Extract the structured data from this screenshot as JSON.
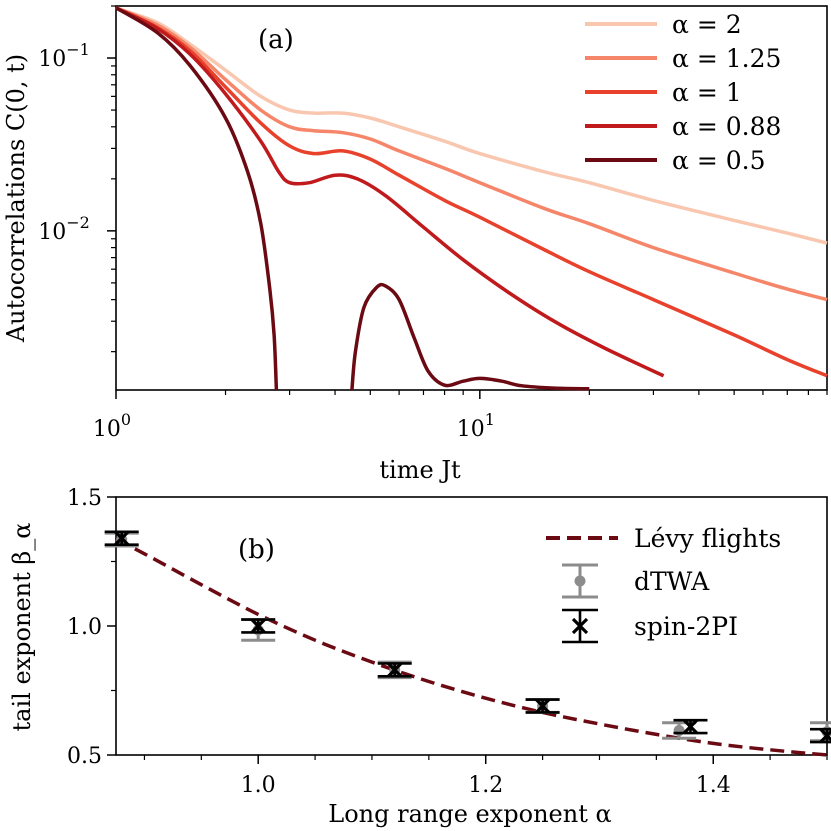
{
  "chart_data": [
    {
      "type": "line",
      "panel_label": "(a)",
      "xlabel": "time Jt",
      "ylabel": "Autocorrelations C(0, t)",
      "xscale": "log",
      "yscale": "log",
      "xlim": [
        1,
        90
      ],
      "ylim": [
        0.0012,
        0.2
      ],
      "x_ticks": [
        {
          "value": 1,
          "base": "10",
          "exp": "0"
        },
        {
          "value": 10,
          "base": "10",
          "exp": "1"
        }
      ],
      "y_ticks": [
        {
          "value": 0.1,
          "base": "10",
          "exp": "−1"
        },
        {
          "value": 0.01,
          "base": "10",
          "exp": "−2"
        }
      ],
      "legend_position": "top-right",
      "series": [
        {
          "name": "α = 2",
          "color": "#f9c7b0",
          "points": [
            [
              1,
              0.195
            ],
            [
              1.3,
              0.16
            ],
            [
              1.6,
              0.12
            ],
            [
              2.0,
              0.085
            ],
            [
              2.5,
              0.06
            ],
            [
              3.0,
              0.05
            ],
            [
              3.5,
              0.048
            ],
            [
              4.2,
              0.048
            ],
            [
              5.0,
              0.045
            ],
            [
              6.0,
              0.04
            ],
            [
              8.0,
              0.033
            ],
            [
              10,
              0.028
            ],
            [
              15,
              0.022
            ],
            [
              20,
              0.019
            ],
            [
              30,
              0.015
            ],
            [
              50,
              0.0115
            ],
            [
              70,
              0.0097
            ],
            [
              90,
              0.0085
            ]
          ]
        },
        {
          "name": "α = 1.25",
          "color": "#f5866a",
          "points": [
            [
              1,
              0.195
            ],
            [
              1.3,
              0.155
            ],
            [
              1.6,
              0.115
            ],
            [
              2.0,
              0.075
            ],
            [
              2.5,
              0.05
            ],
            [
              3.0,
              0.04
            ],
            [
              3.5,
              0.038
            ],
            [
              4.2,
              0.037
            ],
            [
              5.0,
              0.034
            ],
            [
              6.0,
              0.029
            ],
            [
              8.0,
              0.023
            ],
            [
              10,
              0.019
            ],
            [
              15,
              0.0135
            ],
            [
              20,
              0.011
            ],
            [
              30,
              0.008
            ],
            [
              50,
              0.0057
            ],
            [
              70,
              0.0046
            ],
            [
              90,
              0.004
            ]
          ]
        },
        {
          "name": "α = 1",
          "color": "#e8412c",
          "points": [
            [
              1,
              0.195
            ],
            [
              1.3,
              0.15
            ],
            [
              1.6,
              0.11
            ],
            [
              2.0,
              0.068
            ],
            [
              2.5,
              0.042
            ],
            [
              3.0,
              0.031
            ],
            [
              3.5,
              0.028
            ],
            [
              4.2,
              0.029
            ],
            [
              5.0,
              0.026
            ],
            [
              6.0,
              0.021
            ],
            [
              8.0,
              0.015
            ],
            [
              10,
              0.012
            ],
            [
              15,
              0.0078
            ],
            [
              20,
              0.0058
            ],
            [
              30,
              0.004
            ],
            [
              50,
              0.0025
            ],
            [
              70,
              0.0018
            ],
            [
              90,
              0.00145
            ]
          ]
        },
        {
          "name": "α = 0.88",
          "color": "#c01a1d",
          "points": [
            [
              1,
              0.195
            ],
            [
              1.3,
              0.148
            ],
            [
              1.6,
              0.105
            ],
            [
              2.0,
              0.062
            ],
            [
              2.5,
              0.033
            ],
            [
              2.8,
              0.022
            ],
            [
              3.0,
              0.019
            ],
            [
              3.4,
              0.019
            ],
            [
              4.0,
              0.021
            ],
            [
              4.6,
              0.02
            ],
            [
              5.5,
              0.016
            ],
            [
              7.0,
              0.0105
            ],
            [
              9.0,
              0.0068
            ],
            [
              12,
              0.0044
            ],
            [
              16,
              0.003
            ],
            [
              22,
              0.0021
            ],
            [
              32,
              0.00145
            ]
          ]
        },
        {
          "name": "α = 0.5",
          "color": "#6b0a12",
          "points": [
            [
              1,
              0.195
            ],
            [
              1.3,
              0.14
            ],
            [
              1.6,
              0.09
            ],
            [
              2.0,
              0.045
            ],
            [
              2.3,
              0.022
            ],
            [
              2.5,
              0.011
            ],
            [
              2.65,
              0.0045
            ],
            [
              2.72,
              0.0025
            ],
            [
              2.76,
              0.0012
            ]
          ],
          "points2": [
            [
              4.45,
              0.0012
            ],
            [
              4.55,
              0.002
            ],
            [
              4.8,
              0.0036
            ],
            [
              5.2,
              0.0047
            ],
            [
              5.5,
              0.0048
            ],
            [
              6.0,
              0.004
            ],
            [
              6.6,
              0.0024
            ],
            [
              7.2,
              0.00155
            ],
            [
              8.0,
              0.00128
            ],
            [
              9.0,
              0.00135
            ],
            [
              10,
              0.0014
            ],
            [
              11.5,
              0.00135
            ],
            [
              13,
              0.00127
            ],
            [
              16,
              0.00123
            ],
            [
              20,
              0.00122
            ]
          ]
        }
      ]
    },
    {
      "type": "scatter",
      "panel_label": "(b)",
      "xlabel": "Long range exponent α",
      "ylabel": "tail exponent β_α",
      "xlim": [
        0.875,
        1.5
      ],
      "ylim": [
        0.5,
        1.5
      ],
      "x_ticks": [
        "1.0",
        "1.2",
        "1.4"
      ],
      "y_ticks": [
        "0.5",
        "1.0",
        "1.5"
      ],
      "legend_position": "top-right",
      "levy": {
        "name": "Lévy flights",
        "color": "#6b0a12",
        "points": [
          [
            0.875,
            1.335
          ],
          [
            0.9,
            1.28
          ],
          [
            0.95,
            1.16
          ],
          [
            1.0,
            1.045
          ],
          [
            1.05,
            0.945
          ],
          [
            1.1,
            0.86
          ],
          [
            1.15,
            0.785
          ],
          [
            1.2,
            0.72
          ],
          [
            1.25,
            0.665
          ],
          [
            1.3,
            0.62
          ],
          [
            1.35,
            0.58
          ],
          [
            1.4,
            0.545
          ],
          [
            1.45,
            0.52
          ],
          [
            1.5,
            0.5
          ]
        ]
      },
      "dtwa": {
        "name": "dTWA",
        "color": "#8c8c8c",
        "points": [
          {
            "x": 0.88,
            "y": 1.335,
            "err": 0.025
          },
          {
            "x": 1.0,
            "y": 0.985,
            "err": 0.04
          },
          {
            "x": 1.12,
            "y": 0.83,
            "err": 0.03
          },
          {
            "x": 1.25,
            "y": 0.69,
            "err": 0.025
          },
          {
            "x": 1.37,
            "y": 0.595,
            "err": 0.03
          },
          {
            "x": 1.5,
            "y": 0.59,
            "err": 0.035
          }
        ]
      },
      "spin2pi": {
        "name": "spin-2PI",
        "color": "#000000",
        "points": [
          {
            "x": 0.88,
            "y": 1.34,
            "err": 0.025
          },
          {
            "x": 1.0,
            "y": 1.0,
            "err": 0.025
          },
          {
            "x": 1.12,
            "y": 0.83,
            "err": 0.025
          },
          {
            "x": 1.25,
            "y": 0.69,
            "err": 0.025
          },
          {
            "x": 1.38,
            "y": 0.61,
            "err": 0.025
          },
          {
            "x": 1.5,
            "y": 0.575,
            "err": 0.025
          }
        ]
      }
    }
  ]
}
